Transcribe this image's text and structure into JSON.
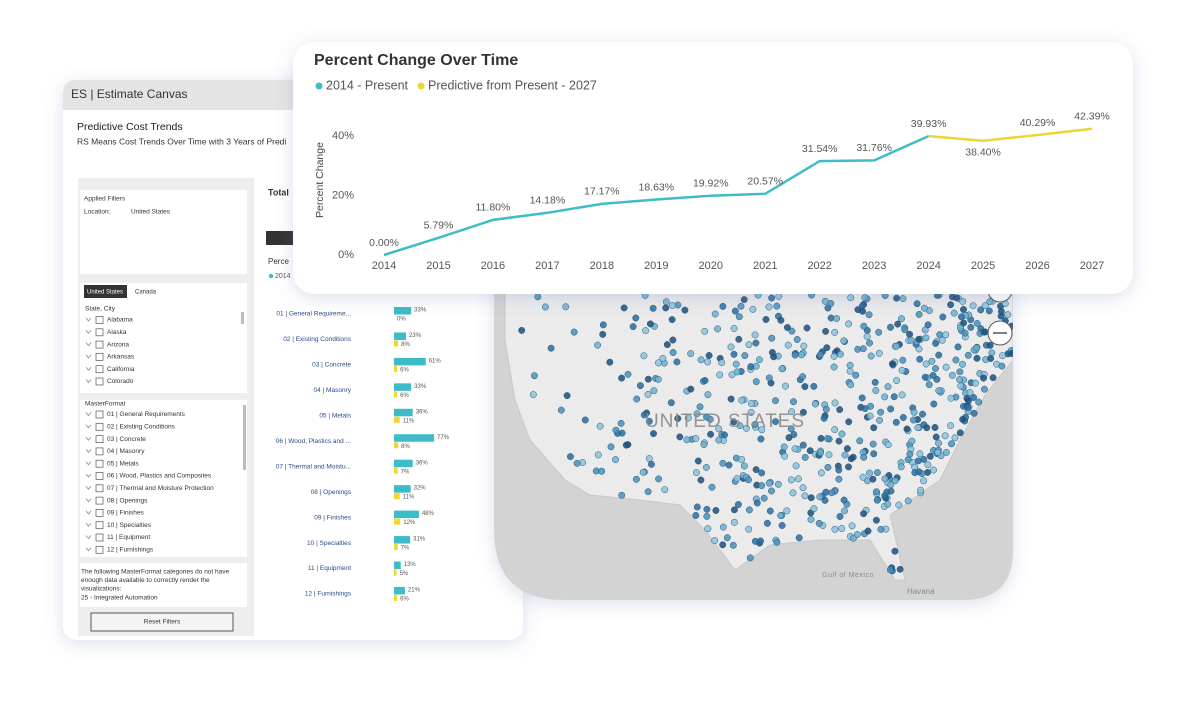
{
  "app_panel": {
    "header": "ES | Estimate Canvas",
    "title": "Predictive Cost Trends",
    "subtitle": "RS Means Cost Trends Over Time with 3 Years of Predi",
    "applied_filters": {
      "title": "Applied Filters",
      "label": "Location:",
      "value": "United States"
    },
    "tabs": [
      "United States",
      "Canada"
    ],
    "state_title": "State, City",
    "states": [
      "Alabama",
      "Alaska",
      "Arizona",
      "Arkansas",
      "California",
      "Colorado"
    ],
    "masterformat_title": "MasterFormat",
    "masterformat": [
      "01 | General Requirements",
      "02 | Existing Conditions",
      "03 | Concrete",
      "04 | Masonry",
      "05 | Metals",
      "06 | Wood, Plastics and Composites",
      "07 | Thermal and Moisture Protection",
      "08 | Openings",
      "09 | Finishes",
      "10 | Specialties",
      "11 | Equipment",
      "12 | Furnishings"
    ],
    "notice": [
      "The following MasterFormat categories do not have",
      "enough data available to correctly render the",
      "visualizations:"
    ],
    "notice_item": "25 - Integrated Automation",
    "reset_button": "Reset Filters",
    "total_label": "Total",
    "percent_label": "Perce",
    "legend_label": "2014",
    "bar_chart": {
      "type": "bar",
      "categories": [
        "01 | General Requireme...",
        "02 | Existing Conditions",
        "03 | Concrete",
        "04 | Masonry",
        "05 | Metals",
        "06 | Wood, Plastics and ...",
        "07 | Thermal and Moistu...",
        "08 | Openings",
        "09 | Finishes",
        "10 | Specialties",
        "11 | Equipment",
        "12 | Furnishings"
      ],
      "xlim": [
        0,
        100
      ],
      "series": [
        {
          "color": "#3dbcc7",
          "values": [
            33,
            23,
            61,
            33,
            36,
            77,
            36,
            32,
            48,
            31,
            13,
            21
          ],
          "value_labels": [
            "33%",
            "23%",
            "61%",
            "33%",
            "36%",
            "77%",
            "36%",
            "32%",
            "48%",
            "31%",
            "13%",
            "21%"
          ]
        },
        {
          "color": "#f2d630",
          "values": [
            0,
            8,
            6,
            6,
            11,
            8,
            7,
            11,
            12,
            7,
            5,
            6
          ],
          "value_labels": [
            "0%",
            "8%",
            "6%",
            "6%",
            "11%",
            "8%",
            "7%",
            "11%",
            "12%",
            "7%",
            "5%",
            "6%"
          ]
        }
      ]
    }
  },
  "map": {
    "country_label": "UNITED STATES",
    "sea_label": "Gulf of Mexico",
    "city_label": "Havana"
  },
  "line_chart": {
    "type": "line",
    "title": "Percent Change Over Time",
    "x": [
      2014,
      2015,
      2016,
      2017,
      2018,
      2019,
      2020,
      2021,
      2022,
      2023,
      2024,
      2025,
      2026,
      2027
    ],
    "xlim": [
      2014,
      2027
    ],
    "xticks": [
      2014,
      2015,
      2016,
      2017,
      2018,
      2019,
      2020,
      2021,
      2022,
      2023,
      2024,
      2025,
      2026,
      2027
    ],
    "ylim": [
      0,
      44
    ],
    "yticks": [
      {
        "value": 0,
        "label": "0%"
      },
      {
        "value": 20,
        "label": "20%"
      },
      {
        "value": 40,
        "label": "40%"
      }
    ],
    "y_label": "Percent Change",
    "series": [
      {
        "name": "2014 - Present",
        "color": "#3fbcc8",
        "values": [
          0,
          5.79,
          11.8,
          14.18,
          17.17,
          18.63,
          19.92,
          20.57,
          31.54,
          31.76,
          39.93,
          null,
          null,
          null
        ],
        "value_labels": [
          "0.00%",
          "5.79%",
          "11.80%",
          "14.18%",
          "17.17%",
          "18.63%",
          "19.92%",
          "20.57%",
          "31.54%",
          "31.76%",
          "39.93%",
          null,
          null,
          null
        ]
      },
      {
        "name": "Predictive from Present - 2027",
        "color": "#eed534",
        "values": [
          null,
          null,
          null,
          null,
          null,
          null,
          null,
          null,
          null,
          null,
          39.93,
          38.4,
          40.29,
          42.39
        ],
        "value_labels": [
          null,
          null,
          null,
          null,
          null,
          null,
          null,
          null,
          null,
          null,
          null,
          "38.40%",
          "40.29%",
          "42.39%"
        ]
      }
    ]
  }
}
